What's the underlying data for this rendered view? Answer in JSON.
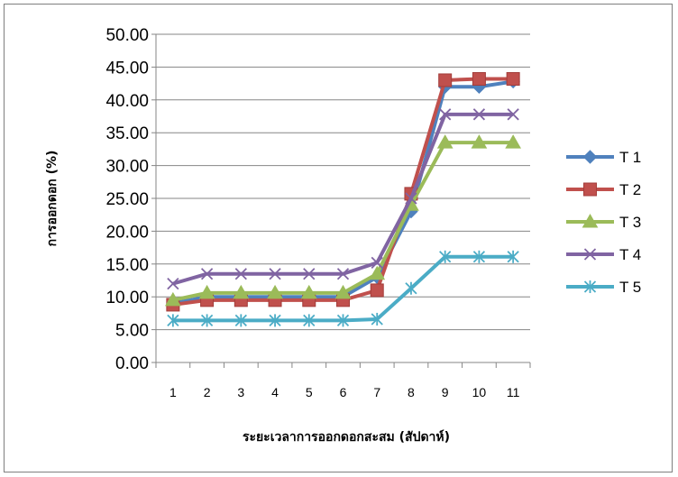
{
  "chart_data": {
    "type": "line",
    "title": "",
    "xlabel": "ระยะเวลาการออกดอกสะสม (สัปดาห์)",
    "ylabel": "การออกดอก (%)",
    "ylim": [
      0,
      50
    ],
    "yticks": [
      "0.00",
      "5.00",
      "10.00",
      "15.00",
      "20.00",
      "25.00",
      "30.00",
      "35.00",
      "40.00",
      "45.00",
      "50.00"
    ],
    "categories": [
      "1",
      "2",
      "3",
      "4",
      "5",
      "6",
      "7",
      "8",
      "9",
      "10",
      "11"
    ],
    "grid": "horizontal",
    "legend_position": "right",
    "series": [
      {
        "name": "T 1",
        "color": "#4f81bd",
        "marker": "diamond",
        "values": [
          9.0,
          10.0,
          10.0,
          10.0,
          10.0,
          10.0,
          13.0,
          23.0,
          42.0,
          42.0,
          42.8
        ]
      },
      {
        "name": "T 2",
        "color": "#c0504d",
        "marker": "square",
        "values": [
          8.8,
          9.5,
          9.5,
          9.5,
          9.5,
          9.5,
          11.0,
          25.7,
          43.0,
          43.2,
          43.2
        ]
      },
      {
        "name": "T 3",
        "color": "#9bbb59",
        "marker": "triangle",
        "values": [
          9.5,
          10.6,
          10.6,
          10.6,
          10.6,
          10.6,
          13.5,
          24.0,
          33.5,
          33.5,
          33.5
        ]
      },
      {
        "name": "T 4",
        "color": "#8064a2",
        "marker": "x",
        "values": [
          12.0,
          13.5,
          13.5,
          13.5,
          13.5,
          13.5,
          15.2,
          25.0,
          37.8,
          37.8,
          37.8
        ]
      },
      {
        "name": "T 5",
        "color": "#4bacc6",
        "marker": "star",
        "values": [
          6.4,
          6.4,
          6.4,
          6.4,
          6.4,
          6.4,
          6.6,
          11.3,
          16.1,
          16.1,
          16.1
        ]
      }
    ]
  }
}
